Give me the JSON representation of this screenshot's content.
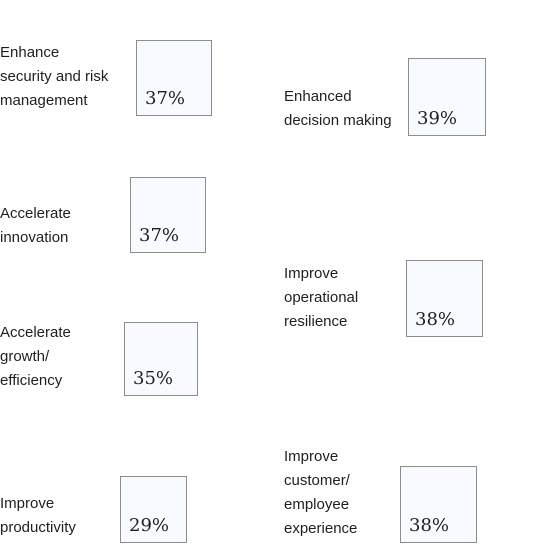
{
  "chart_data": {
    "type": "bar",
    "categories": [
      "Enhance\nsecurity and risk\nmanagement",
      "Enhanced\ndecision making",
      "Accelerate\ninnovation",
      "Improve\noperational\nresilience",
      "Accelerate\ngrowth/\nefficiency",
      "Improve\nproductivity",
      "Improve\ncustomer/\nemployee\nexperience"
    ],
    "values": [
      37,
      39,
      37,
      38,
      35,
      29,
      38
    ],
    "value_labels": [
      "37%",
      "39%",
      "37%",
      "38%",
      "35%",
      "29%",
      "38%"
    ],
    "unit": "%"
  },
  "colors": {
    "box_fill": "#f7fbff",
    "box_border": "#8c8c8c",
    "text": "#1f1f1f"
  }
}
